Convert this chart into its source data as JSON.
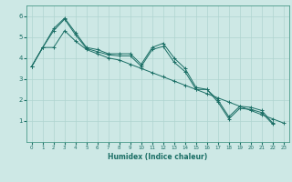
{
  "xlabel": "Humidex (Indice chaleur)",
  "background_color": "#cde8e5",
  "grid_color": "#b0d4d0",
  "line_color": "#1a6e65",
  "xlim": [
    -0.5,
    23.5
  ],
  "ylim": [
    0.0,
    6.5
  ],
  "x_ticks": [
    0,
    1,
    2,
    3,
    4,
    5,
    6,
    7,
    8,
    9,
    10,
    11,
    12,
    13,
    14,
    15,
    16,
    17,
    18,
    19,
    20,
    21,
    22,
    23
  ],
  "y_ticks": [
    1,
    2,
    3,
    4,
    5,
    6
  ],
  "line1_x": [
    0,
    1,
    2,
    3,
    4,
    5,
    6,
    7,
    8,
    9,
    10,
    11,
    12,
    13,
    14,
    15,
    16,
    17,
    18,
    19,
    20,
    21,
    22
  ],
  "line1_y": [
    3.6,
    4.5,
    5.4,
    5.9,
    5.2,
    4.5,
    4.4,
    4.2,
    4.2,
    4.2,
    3.7,
    4.5,
    4.7,
    4.0,
    3.5,
    2.6,
    2.5,
    2.0,
    1.2,
    1.7,
    1.65,
    1.5,
    0.9
  ],
  "line2_x": [
    0,
    1,
    2,
    3,
    4,
    5,
    6,
    7,
    8,
    9,
    10,
    11,
    12,
    13,
    14,
    15,
    16,
    17,
    18,
    19,
    20,
    21,
    22
  ],
  "line2_y": [
    3.6,
    4.5,
    5.3,
    5.85,
    5.1,
    4.45,
    4.3,
    4.15,
    4.1,
    4.1,
    3.6,
    4.4,
    4.55,
    3.8,
    3.35,
    2.5,
    2.5,
    1.9,
    1.1,
    1.6,
    1.55,
    1.4,
    0.85
  ],
  "line3_x": [
    0,
    1,
    2,
    3,
    4,
    5,
    6,
    7,
    8,
    9,
    10,
    11,
    12,
    13,
    14,
    15,
    16,
    17,
    18,
    19,
    20,
    21,
    22,
    23
  ],
  "line3_y": [
    3.6,
    4.5,
    4.5,
    5.3,
    4.8,
    4.4,
    4.2,
    4.0,
    3.9,
    3.7,
    3.5,
    3.3,
    3.1,
    2.9,
    2.7,
    2.5,
    2.3,
    2.1,
    1.9,
    1.7,
    1.5,
    1.3,
    1.1,
    0.9
  ]
}
